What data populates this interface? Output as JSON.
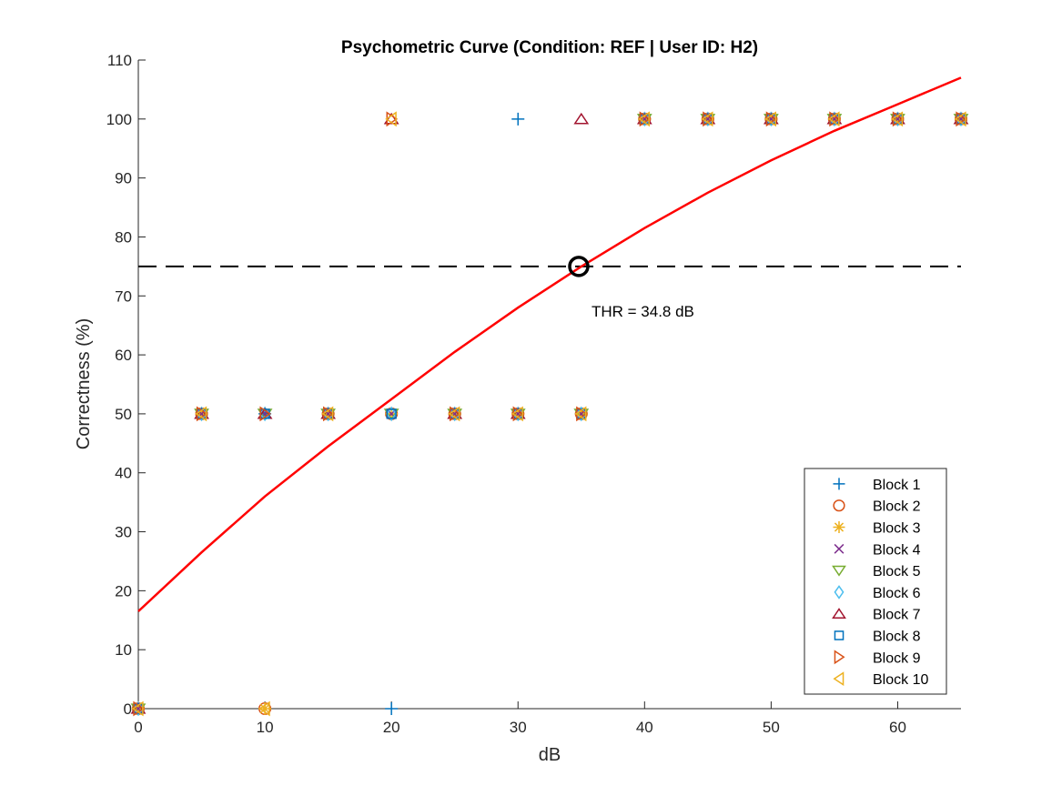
{
  "chart_data": {
    "type": "scatter",
    "title": "Psychometric Curve (Condition: REF | User ID: H2)",
    "xlabel": "dB",
    "ylabel": "Correctness (%)",
    "xlim": [
      0,
      65
    ],
    "ylim": [
      0,
      110
    ],
    "xticks": [
      0,
      10,
      20,
      30,
      40,
      50,
      60
    ],
    "yticks": [
      0,
      10,
      20,
      30,
      40,
      50,
      60,
      70,
      80,
      90,
      100,
      110
    ],
    "grid": false,
    "legend_position": "bottom-right",
    "series": [
      {
        "name": "Block 1",
        "marker": "plus",
        "color": "#0072BD",
        "points": [
          [
            0,
            0
          ],
          [
            5,
            50
          ],
          [
            10,
            50
          ],
          [
            15,
            50
          ],
          [
            20,
            0
          ],
          [
            25,
            50
          ],
          [
            30,
            100
          ],
          [
            35,
            50
          ],
          [
            40,
            100
          ],
          [
            45,
            100
          ],
          [
            50,
            100
          ],
          [
            55,
            100
          ],
          [
            60,
            100
          ],
          [
            65,
            100
          ]
        ]
      },
      {
        "name": "Block 2",
        "marker": "circle",
        "color": "#D95319",
        "points": [
          [
            0,
            0
          ],
          [
            5,
            50
          ],
          [
            10,
            0
          ],
          [
            15,
            50
          ],
          [
            20,
            50
          ],
          [
            25,
            50
          ],
          [
            30,
            50
          ],
          [
            35,
            50
          ],
          [
            40,
            100
          ],
          [
            45,
            100
          ],
          [
            50,
            100
          ],
          [
            55,
            100
          ],
          [
            60,
            100
          ],
          [
            65,
            100
          ]
        ]
      },
      {
        "name": "Block 3",
        "marker": "asterisk",
        "color": "#EDB120",
        "points": [
          [
            0,
            0
          ],
          [
            5,
            50
          ],
          [
            10,
            0
          ],
          [
            15,
            50
          ],
          [
            20,
            50
          ],
          [
            25,
            50
          ],
          [
            30,
            50
          ],
          [
            35,
            50
          ],
          [
            40,
            100
          ],
          [
            45,
            100
          ],
          [
            50,
            100
          ],
          [
            55,
            100
          ],
          [
            60,
            100
          ],
          [
            65,
            100
          ]
        ]
      },
      {
        "name": "Block 4",
        "marker": "x",
        "color": "#7E2F8E",
        "points": [
          [
            0,
            0
          ],
          [
            5,
            50
          ],
          [
            10,
            50
          ],
          [
            15,
            50
          ],
          [
            20,
            50
          ],
          [
            25,
            50
          ],
          [
            30,
            50
          ],
          [
            35,
            50
          ],
          [
            40,
            100
          ],
          [
            45,
            100
          ],
          [
            50,
            100
          ],
          [
            55,
            100
          ],
          [
            60,
            100
          ],
          [
            65,
            100
          ]
        ]
      },
      {
        "name": "Block 5",
        "marker": "triangle-down",
        "color": "#77AC30",
        "points": [
          [
            0,
            0
          ],
          [
            5,
            50
          ],
          [
            10,
            50
          ],
          [
            15,
            50
          ],
          [
            20,
            50
          ],
          [
            25,
            50
          ],
          [
            30,
            50
          ],
          [
            35,
            50
          ],
          [
            40,
            100
          ],
          [
            45,
            100
          ],
          [
            50,
            100
          ],
          [
            55,
            100
          ],
          [
            60,
            100
          ],
          [
            65,
            100
          ]
        ]
      },
      {
        "name": "Block 6",
        "marker": "diamond",
        "color": "#4DBEEE",
        "points": [
          [
            0,
            0
          ],
          [
            5,
            50
          ],
          [
            10,
            50
          ],
          [
            15,
            50
          ],
          [
            20,
            50
          ],
          [
            25,
            50
          ],
          [
            30,
            50
          ],
          [
            35,
            50
          ],
          [
            40,
            100
          ],
          [
            45,
            100
          ],
          [
            50,
            100
          ],
          [
            55,
            100
          ],
          [
            60,
            100
          ],
          [
            65,
            100
          ]
        ]
      },
      {
        "name": "Block 7",
        "marker": "triangle-up",
        "color": "#A2142F",
        "points": [
          [
            0,
            0
          ],
          [
            5,
            50
          ],
          [
            10,
            50
          ],
          [
            15,
            50
          ],
          [
            20,
            100
          ],
          [
            25,
            50
          ],
          [
            30,
            50
          ],
          [
            35,
            100
          ],
          [
            40,
            100
          ],
          [
            45,
            100
          ],
          [
            50,
            100
          ],
          [
            55,
            100
          ],
          [
            60,
            100
          ],
          [
            65,
            100
          ]
        ]
      },
      {
        "name": "Block 8",
        "marker": "square",
        "color": "#0072BD",
        "points": [
          [
            0,
            0
          ],
          [
            5,
            50
          ],
          [
            10,
            50
          ],
          [
            15,
            50
          ],
          [
            20,
            50
          ],
          [
            25,
            50
          ],
          [
            30,
            50
          ],
          [
            35,
            50
          ],
          [
            40,
            100
          ],
          [
            45,
            100
          ],
          [
            50,
            100
          ],
          [
            55,
            100
          ],
          [
            60,
            100
          ],
          [
            65,
            100
          ]
        ]
      },
      {
        "name": "Block 9",
        "marker": "triangle-right",
        "color": "#D95319",
        "points": [
          [
            0,
            0
          ],
          [
            5,
            50
          ],
          [
            10,
            50
          ],
          [
            15,
            50
          ],
          [
            20,
            100
          ],
          [
            25,
            50
          ],
          [
            30,
            50
          ],
          [
            35,
            50
          ],
          [
            40,
            100
          ],
          [
            45,
            100
          ],
          [
            50,
            100
          ],
          [
            55,
            100
          ],
          [
            60,
            100
          ],
          [
            65,
            100
          ]
        ]
      },
      {
        "name": "Block 10",
        "marker": "triangle-left",
        "color": "#EDB120",
        "points": [
          [
            0,
            0
          ],
          [
            5,
            50
          ],
          [
            10,
            0
          ],
          [
            15,
            50
          ],
          [
            20,
            100
          ],
          [
            25,
            50
          ],
          [
            30,
            50
          ],
          [
            35,
            50
          ],
          [
            40,
            100
          ],
          [
            45,
            100
          ],
          [
            50,
            100
          ],
          [
            55,
            100
          ],
          [
            60,
            100
          ],
          [
            65,
            100
          ]
        ]
      }
    ],
    "fit_curve": {
      "color": "#FF0000",
      "points": [
        [
          0,
          16.5
        ],
        [
          5,
          26.5
        ],
        [
          10,
          36
        ],
        [
          15,
          44.5
        ],
        [
          20,
          52.5
        ],
        [
          25,
          60.5
        ],
        [
          30,
          68
        ],
        [
          35,
          75
        ],
        [
          40,
          81.5
        ],
        [
          45,
          87.5
        ],
        [
          50,
          93
        ],
        [
          55,
          98
        ],
        [
          60,
          102.5
        ],
        [
          65,
          107
        ]
      ]
    },
    "reference_line": {
      "y": 75,
      "style": "dashed",
      "color": "#000000"
    },
    "threshold": {
      "x": 34.8,
      "y": 75,
      "label": "THR = 34.8 dB"
    }
  }
}
